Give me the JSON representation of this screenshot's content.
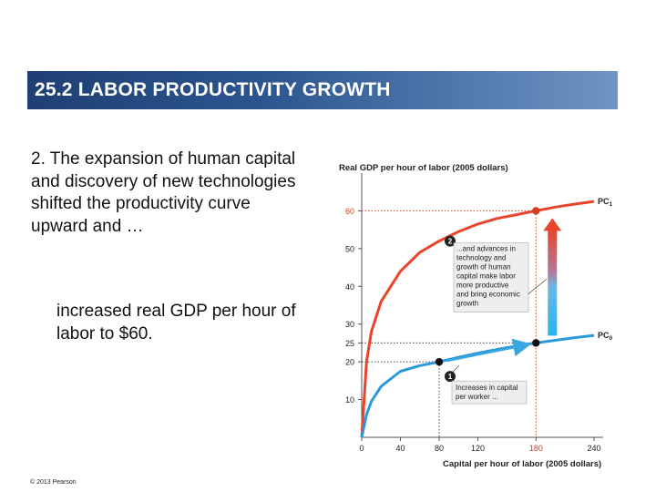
{
  "slide": {
    "title": "25.2  LABOR PRODUCTIVITY GROWTH",
    "para1_num": "2.",
    "para1_text": " The expansion of human capital and discovery of new technologies shifted the productivity curve upward and …",
    "para2_text": "increased real GDP per hour of labor to $60.",
    "copyright": "© 2013 Pearson"
  },
  "chart_data": {
    "type": "line",
    "title": "",
    "ylabel": "Real GDP per hour of labor (2005 dollars)",
    "xlabel": "Capital per hour of labor (2005 dollars)",
    "xlim": [
      0,
      240
    ],
    "ylim": [
      0,
      70
    ],
    "xticks": [
      0,
      40,
      80,
      120,
      180,
      240
    ],
    "yticks": [
      10,
      20,
      25,
      30,
      40,
      50,
      60
    ],
    "xtick_labels": [
      "0",
      "40",
      "80",
      "120",
      "180",
      "240"
    ],
    "ytick_labels": [
      "10",
      "20",
      "25",
      "30",
      "40",
      "50",
      "60"
    ],
    "highlight_x": "180",
    "series": [
      {
        "name": "PC1",
        "label_main": "PC",
        "label_sub": "1",
        "color": "#e8452c",
        "x": [
          0,
          5,
          10,
          20,
          40,
          60,
          80,
          100,
          120,
          140,
          160,
          180,
          200,
          220,
          240
        ],
        "y": [
          0,
          20,
          28,
          36,
          44,
          49,
          52,
          54.5,
          56.5,
          58,
          59,
          60,
          61,
          61.8,
          62.5
        ]
      },
      {
        "name": "PC0",
        "label_main": "PC",
        "label_sub": "0",
        "color": "#2a9ad8",
        "x": [
          0,
          5,
          10,
          20,
          40,
          60,
          80,
          100,
          120,
          140,
          160,
          180,
          200,
          220,
          240
        ],
        "y": [
          0,
          6,
          9.5,
          13.5,
          17.5,
          19,
          20,
          21.2,
          22.3,
          23.3,
          24.2,
          25,
          25.7,
          26.4,
          27
        ]
      }
    ],
    "points": [
      {
        "x": 80,
        "y": 20,
        "series": "PC0"
      },
      {
        "x": 180,
        "y": 25,
        "series": "PC0"
      },
      {
        "x": 180,
        "y": 60,
        "series": "PC1"
      }
    ],
    "annotations": [
      {
        "id": "1",
        "lines": [
          "Increases in capital",
          "per worker ..."
        ]
      },
      {
        "id": "2",
        "lines": [
          "...and advances in",
          "technology and",
          "growth of human",
          "capital make labor",
          "more productive",
          "and bring economic",
          "growth"
        ]
      }
    ]
  }
}
